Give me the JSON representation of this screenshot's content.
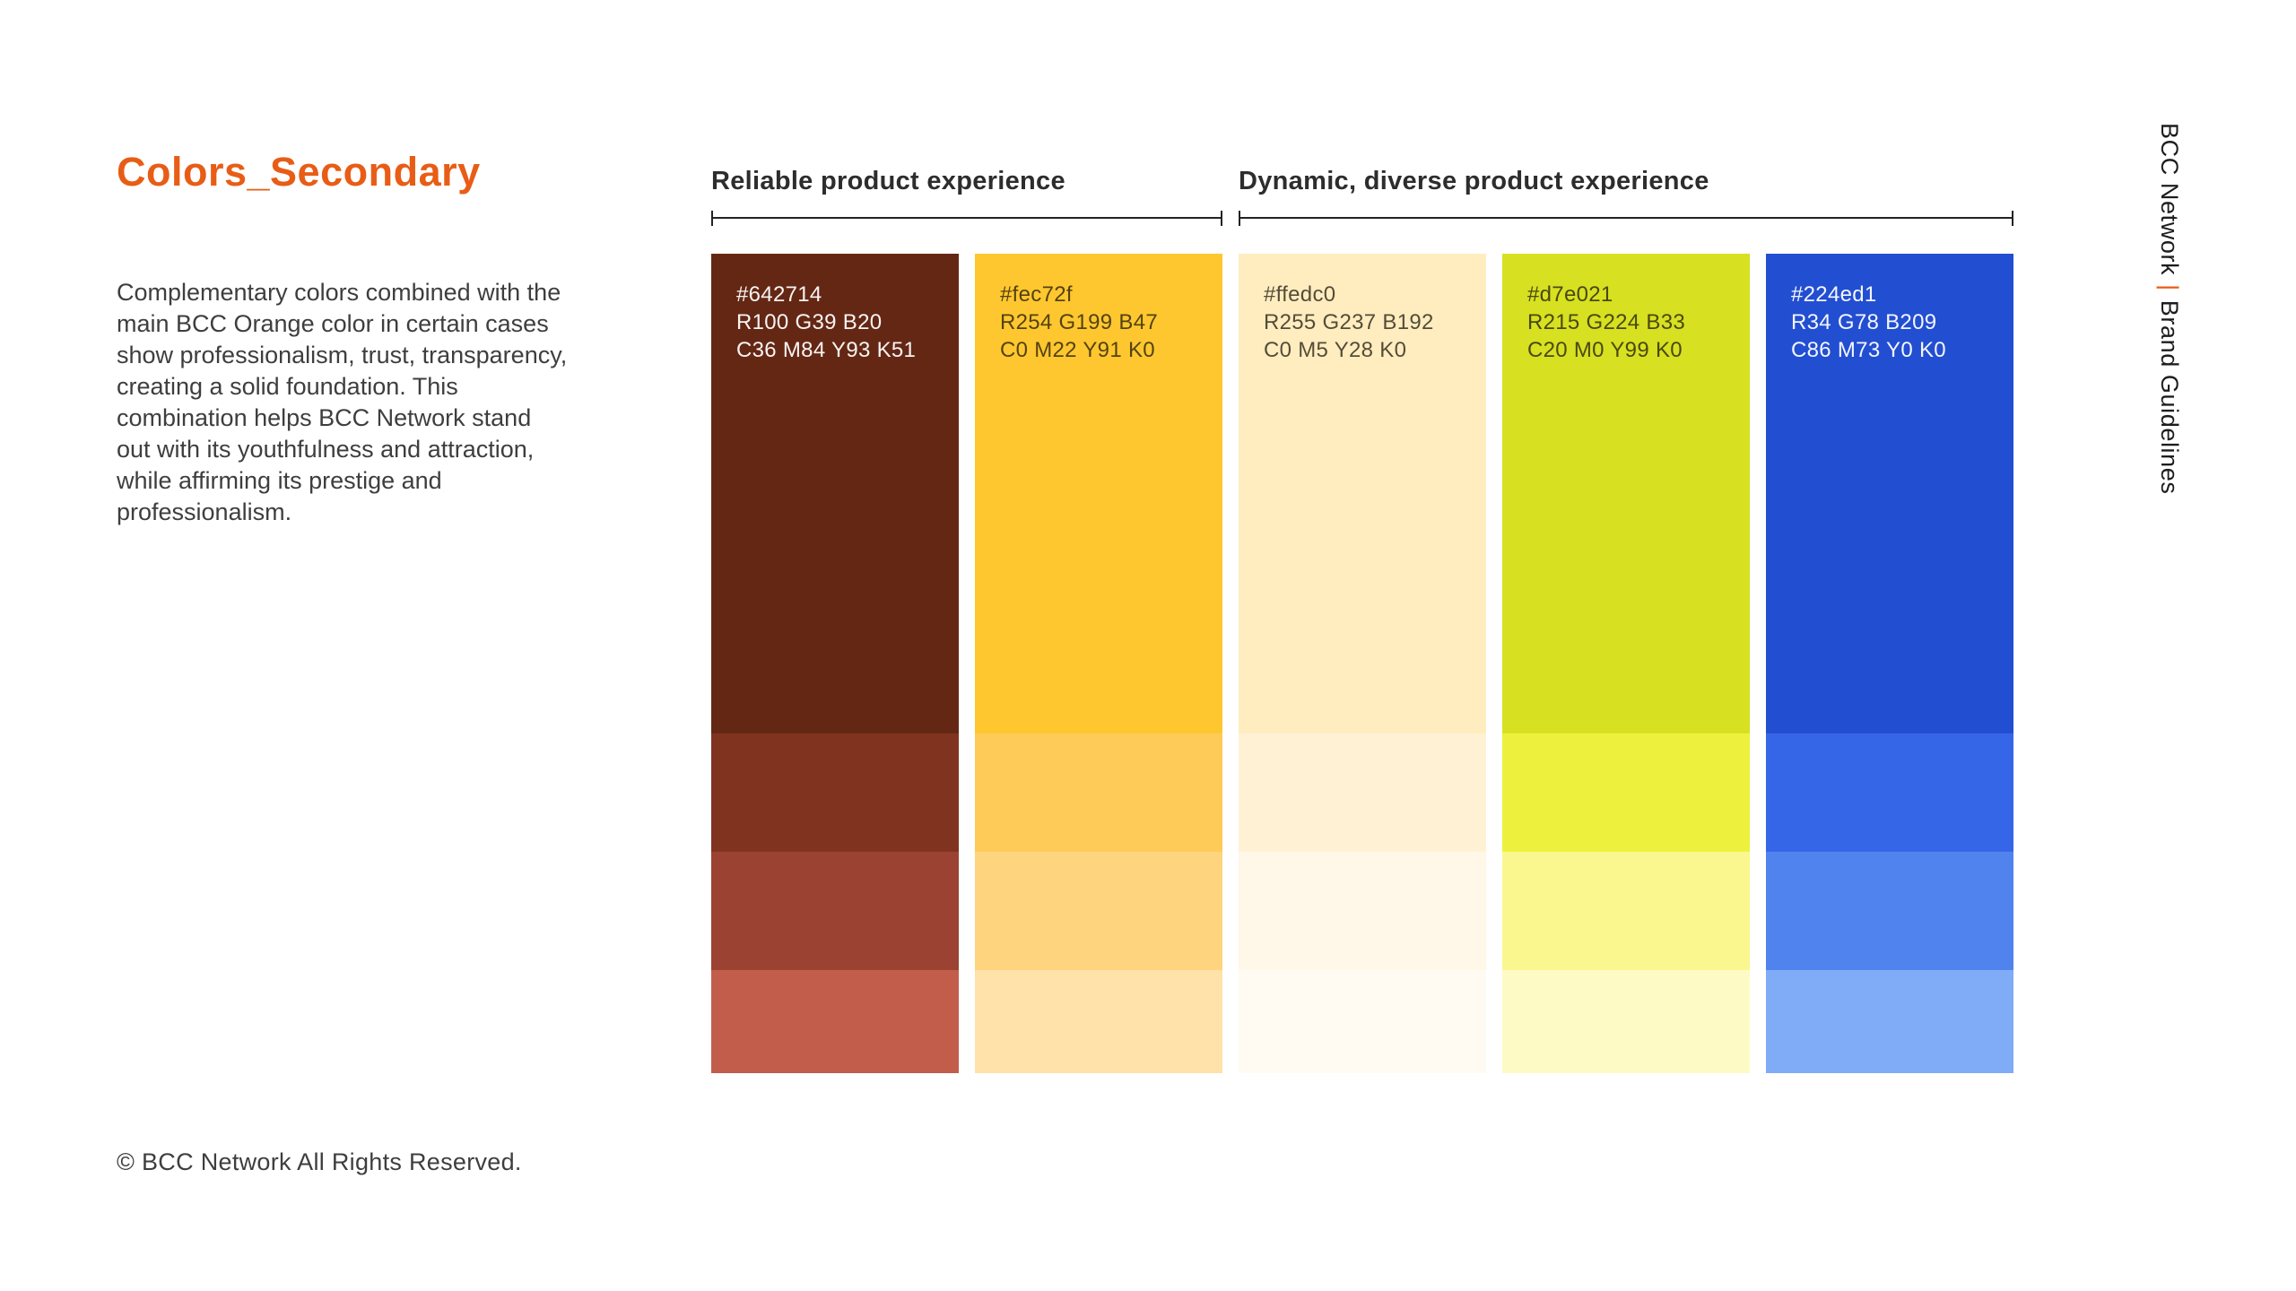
{
  "page": {
    "title": "Colors_Secondary",
    "description": "Complementary colors combined with the main BCC Orange color in certain cases show professionalism, trust, transparency, creating a solid foundation. This combination helps BCC Network stand out with its youthfulness and attraction, while affirming its prestige and professionalism.",
    "footer": "© BCC Network All Rights Reserved.",
    "accent_color": "#E85D16"
  },
  "sidebar": {
    "brand": "BCC Network",
    "separator": "|",
    "document": "Brand Guidelines"
  },
  "groups": [
    {
      "label": "Reliable product experience",
      "swatches": [
        {
          "hex": "#642714",
          "rgb": "R100 G39 B20",
          "cmyk": "C36 M84 Y93 K51",
          "text_tone": "light",
          "shades": [
            "#642714",
            "#80331F",
            "#9B4232",
            "#C25D4B"
          ]
        },
        {
          "hex": "#fec72f",
          "rgb": "R254 G199 B47",
          "cmyk": "C0 M22 Y91 K0",
          "text_tone": "dark",
          "shades": [
            "#FEC72F",
            "#FECB58",
            "#FED47E",
            "#FFE2A9"
          ]
        }
      ]
    },
    {
      "label": "Dynamic, diverse product experience",
      "swatches": [
        {
          "hex": "#ffedc0",
          "rgb": "R255 G237 B192",
          "cmyk": "C0 M5 Y28 K0",
          "text_tone": "dark",
          "shades": [
            "#FFEDC0",
            "#FFF2D4",
            "#FFF7E7",
            "#FFFBF2"
          ]
        },
        {
          "hex": "#d7e021",
          "rgb": "R215 G224 B33",
          "cmyk": "C20 M0 Y99 K0",
          "text_tone": "dark",
          "shades": [
            "#D7E021",
            "#EDF13D",
            "#FBF78F",
            "#FDFAC5"
          ]
        },
        {
          "hex": "#224ed1",
          "rgb": "R34 G78 B209",
          "cmyk": "C86 M73 Y0 K0",
          "text_tone": "light",
          "shades": [
            "#224ED1",
            "#3566E8",
            "#5083EE",
            "#7FABF7"
          ]
        }
      ]
    }
  ]
}
